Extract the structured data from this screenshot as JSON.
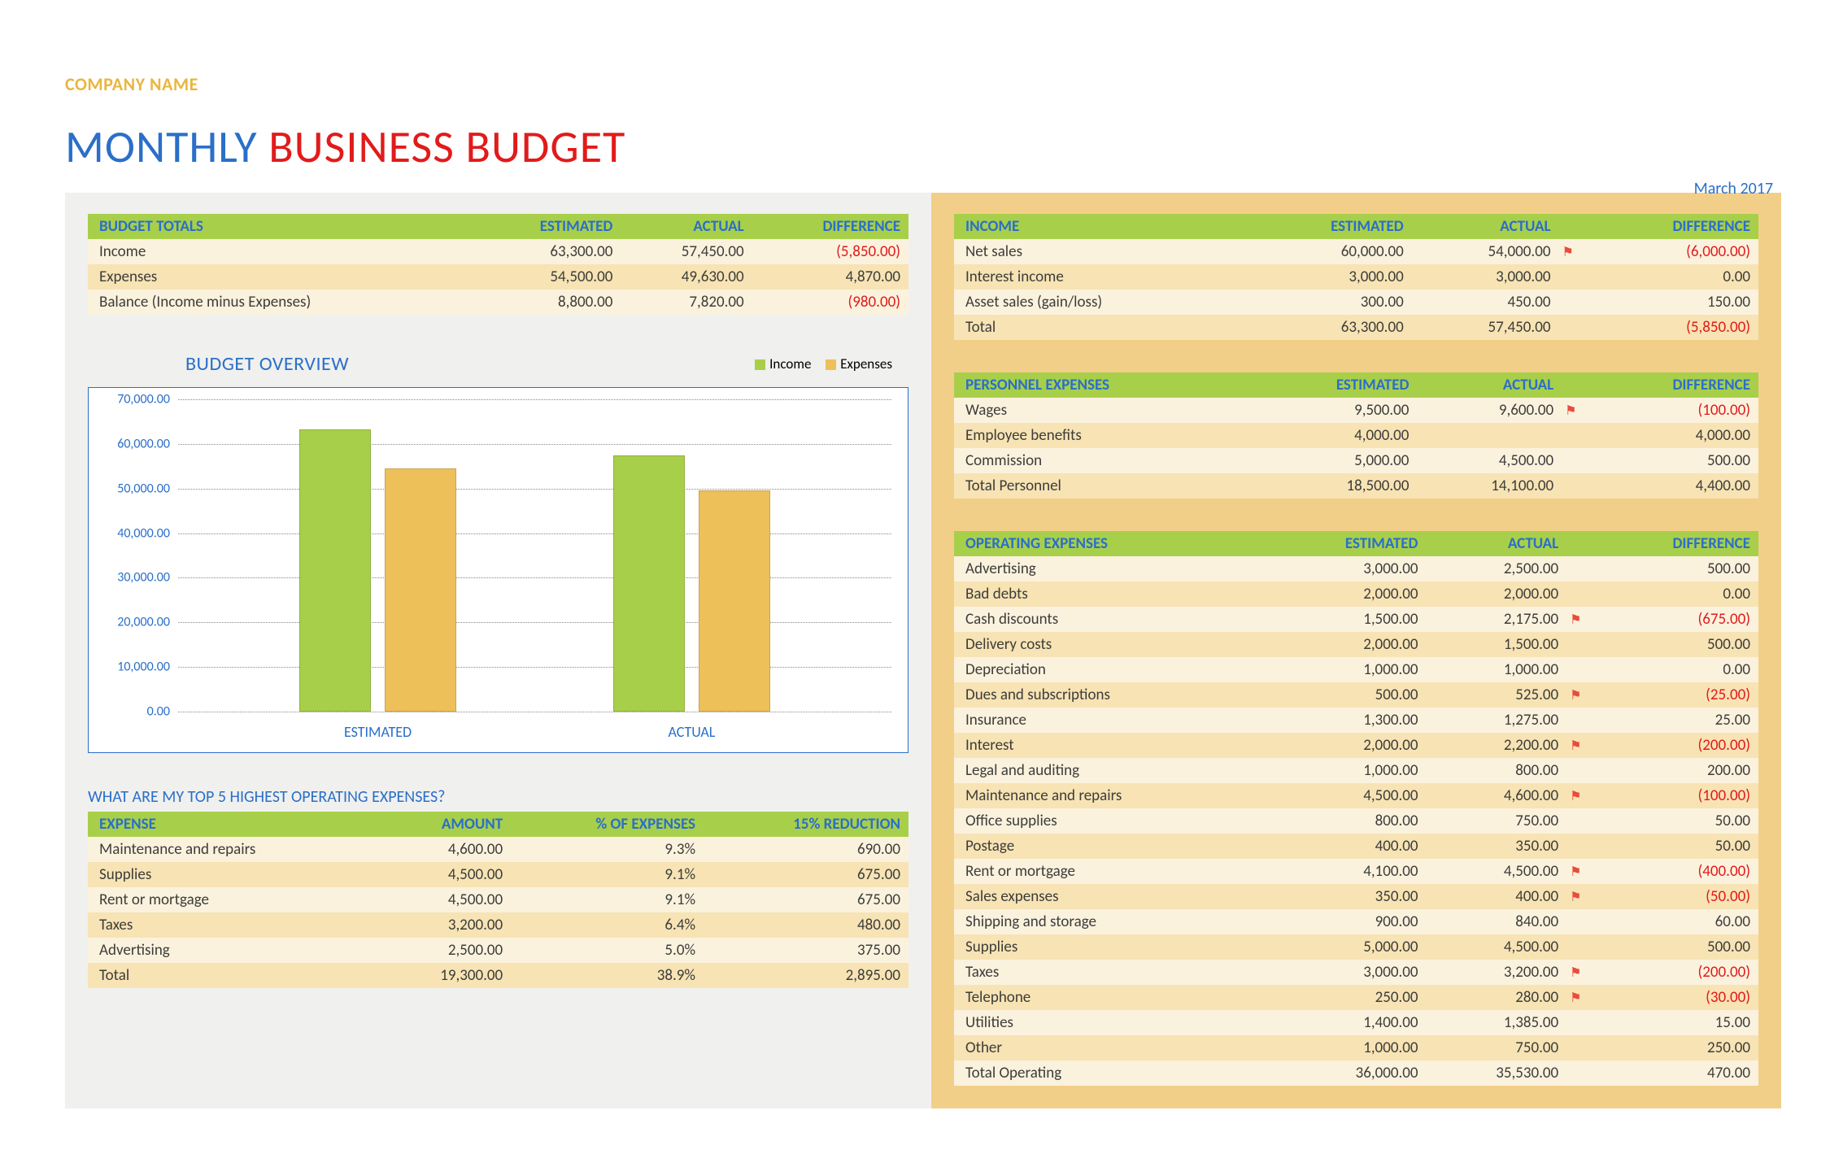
{
  "header": {
    "company_name": "COMPANY NAME",
    "title_monthly": "MONTHLY ",
    "title_business": "BUSINESS BUDGET",
    "date": "March 2017"
  },
  "colors": {
    "header_bg": "#a8cf4a",
    "header_text": "#2a6fc9",
    "row_a": "#fbf2de",
    "row_b": "#f7e3b4",
    "negative": "#e11b1b",
    "left_bg": "#f0f0ee",
    "right_bg": "#f2cf88",
    "bar_income": "#a8cf4a",
    "bar_expenses": "#eec05a",
    "chart_border": "#2a6fc9"
  },
  "budget_totals": {
    "title": "BUDGET TOTALS",
    "cols": [
      "ESTIMATED",
      "ACTUAL",
      "DIFFERENCE"
    ],
    "rows": [
      {
        "label": "Income",
        "est": "63,300.00",
        "act": "57,450.00",
        "diff": "(5,850.00)",
        "neg": true
      },
      {
        "label": "Expenses",
        "est": "54,500.00",
        "act": "49,630.00",
        "diff": "4,870.00",
        "neg": false
      },
      {
        "label": "Balance (Income minus Expenses)",
        "est": "8,800.00",
        "act": "7,820.00",
        "diff": "(980.00)",
        "neg": true
      }
    ]
  },
  "chart": {
    "title": "BUDGET OVERVIEW",
    "legend_income": "Income",
    "legend_expenses": "Expenses",
    "ylim": [
      0,
      70000
    ],
    "ytick_step": 10000,
    "yticks": [
      "0.00",
      "10,000.00",
      "20,000.00",
      "30,000.00",
      "40,000.00",
      "50,000.00",
      "60,000.00",
      "70,000.00"
    ],
    "categories": [
      "ESTIMATED",
      "ACTUAL"
    ],
    "series": {
      "income": [
        63300,
        57450
      ],
      "expenses": [
        54500,
        49630
      ]
    },
    "bar_width_pct": 10,
    "group_gap_pct": 2
  },
  "top5": {
    "title": "WHAT ARE MY TOP 5 HIGHEST OPERATING EXPENSES?",
    "cols": [
      "EXPENSE",
      "AMOUNT",
      "% OF EXPENSES",
      "15% REDUCTION"
    ],
    "rows": [
      {
        "label": "Maintenance and repairs",
        "amount": "4,600.00",
        "pct": "9.3%",
        "red": "690.00"
      },
      {
        "label": "Supplies",
        "amount": "4,500.00",
        "pct": "9.1%",
        "red": "675.00"
      },
      {
        "label": "Rent or mortgage",
        "amount": "4,500.00",
        "pct": "9.1%",
        "red": "675.00"
      },
      {
        "label": "Taxes",
        "amount": "3,200.00",
        "pct": "6.4%",
        "red": "480.00"
      },
      {
        "label": "Advertising",
        "amount": "2,500.00",
        "pct": "5.0%",
        "red": "375.00"
      },
      {
        "label": "Total",
        "amount": "19,300.00",
        "pct": "38.9%",
        "red": "2,895.00"
      }
    ]
  },
  "income": {
    "title": "INCOME",
    "cols": [
      "ESTIMATED",
      "ACTUAL",
      "DIFFERENCE"
    ],
    "rows": [
      {
        "label": "Net sales",
        "est": "60,000.00",
        "act": "54,000.00",
        "diff": "(6,000.00)",
        "neg": true,
        "flag": true
      },
      {
        "label": "Interest income",
        "est": "3,000.00",
        "act": "3,000.00",
        "diff": "0.00",
        "neg": false,
        "flag": false
      },
      {
        "label": "Asset sales (gain/loss)",
        "est": "300.00",
        "act": "450.00",
        "diff": "150.00",
        "neg": false,
        "flag": false
      },
      {
        "label": "Total",
        "est": "63,300.00",
        "act": "57,450.00",
        "diff": "(5,850.00)",
        "neg": true,
        "flag": false
      }
    ]
  },
  "personnel": {
    "title": "PERSONNEL EXPENSES",
    "cols": [
      "ESTIMATED",
      "ACTUAL",
      "DIFFERENCE"
    ],
    "rows": [
      {
        "label": "Wages",
        "est": "9,500.00",
        "act": "9,600.00",
        "diff": "(100.00)",
        "neg": true,
        "flag": true
      },
      {
        "label": "Employee benefits",
        "est": "4,000.00",
        "act": "",
        "diff": "4,000.00",
        "neg": false,
        "flag": false
      },
      {
        "label": "Commission",
        "est": "5,000.00",
        "act": "4,500.00",
        "diff": "500.00",
        "neg": false,
        "flag": false
      },
      {
        "label": "Total Personnel",
        "est": "18,500.00",
        "act": "14,100.00",
        "diff": "4,400.00",
        "neg": false,
        "flag": false
      }
    ]
  },
  "operating": {
    "title": "OPERATING EXPENSES",
    "cols": [
      "ESTIMATED",
      "ACTUAL",
      "DIFFERENCE"
    ],
    "rows": [
      {
        "label": "Advertising",
        "est": "3,000.00",
        "act": "2,500.00",
        "diff": "500.00",
        "neg": false,
        "flag": false
      },
      {
        "label": "Bad debts",
        "est": "2,000.00",
        "act": "2,000.00",
        "diff": "0.00",
        "neg": false,
        "flag": false
      },
      {
        "label": "Cash discounts",
        "est": "1,500.00",
        "act": "2,175.00",
        "diff": "(675.00)",
        "neg": true,
        "flag": true
      },
      {
        "label": "Delivery costs",
        "est": "2,000.00",
        "act": "1,500.00",
        "diff": "500.00",
        "neg": false,
        "flag": false
      },
      {
        "label": "Depreciation",
        "est": "1,000.00",
        "act": "1,000.00",
        "diff": "0.00",
        "neg": false,
        "flag": false
      },
      {
        "label": "Dues and subscriptions",
        "est": "500.00",
        "act": "525.00",
        "diff": "(25.00)",
        "neg": true,
        "flag": true
      },
      {
        "label": "Insurance",
        "est": "1,300.00",
        "act": "1,275.00",
        "diff": "25.00",
        "neg": false,
        "flag": false
      },
      {
        "label": "Interest",
        "est": "2,000.00",
        "act": "2,200.00",
        "diff": "(200.00)",
        "neg": true,
        "flag": true
      },
      {
        "label": "Legal and auditing",
        "est": "1,000.00",
        "act": "800.00",
        "diff": "200.00",
        "neg": false,
        "flag": false
      },
      {
        "label": "Maintenance and repairs",
        "est": "4,500.00",
        "act": "4,600.00",
        "diff": "(100.00)",
        "neg": true,
        "flag": true
      },
      {
        "label": "Office supplies",
        "est": "800.00",
        "act": "750.00",
        "diff": "50.00",
        "neg": false,
        "flag": false
      },
      {
        "label": "Postage",
        "est": "400.00",
        "act": "350.00",
        "diff": "50.00",
        "neg": false,
        "flag": false
      },
      {
        "label": "Rent or mortgage",
        "est": "4,100.00",
        "act": "4,500.00",
        "diff": "(400.00)",
        "neg": true,
        "flag": true
      },
      {
        "label": "Sales expenses",
        "est": "350.00",
        "act": "400.00",
        "diff": "(50.00)",
        "neg": true,
        "flag": true
      },
      {
        "label": "Shipping and storage",
        "est": "900.00",
        "act": "840.00",
        "diff": "60.00",
        "neg": false,
        "flag": false
      },
      {
        "label": "Supplies",
        "est": "5,000.00",
        "act": "4,500.00",
        "diff": "500.00",
        "neg": false,
        "flag": false
      },
      {
        "label": "Taxes",
        "est": "3,000.00",
        "act": "3,200.00",
        "diff": "(200.00)",
        "neg": true,
        "flag": true
      },
      {
        "label": "Telephone",
        "est": "250.00",
        "act": "280.00",
        "diff": "(30.00)",
        "neg": true,
        "flag": true
      },
      {
        "label": "Utilities",
        "est": "1,400.00",
        "act": "1,385.00",
        "diff": "15.00",
        "neg": false,
        "flag": false
      },
      {
        "label": "Other",
        "est": "1,000.00",
        "act": "750.00",
        "diff": "250.00",
        "neg": false,
        "flag": false
      },
      {
        "label": "Total Operating",
        "est": "36,000.00",
        "act": "35,530.00",
        "diff": "470.00",
        "neg": false,
        "flag": false
      }
    ]
  }
}
